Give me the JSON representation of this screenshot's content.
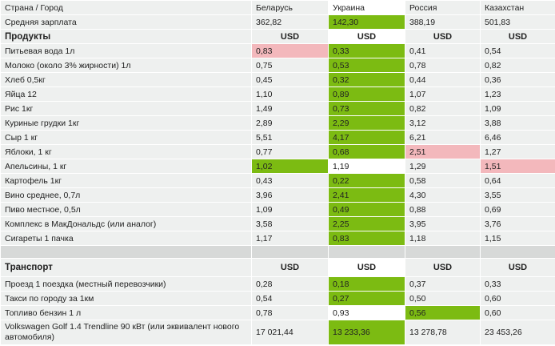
{
  "header": {
    "name": "Страна / Город",
    "countries": [
      "Беларусь",
      "Украина",
      "Россия",
      "Казахстан"
    ]
  },
  "salary": {
    "name": "Средняя зарплата",
    "values": [
      "362,82",
      "142,30",
      "388,19",
      "501,83"
    ]
  },
  "products": {
    "title": "Продукты",
    "currency": [
      "USD",
      "USD",
      "USD",
      "USD"
    ],
    "rows": [
      {
        "name": "Питьевая вода 1л",
        "values": [
          "0,83",
          "0,33",
          "0,41",
          "0,54"
        ],
        "hl": [
          "r",
          "g",
          "",
          ""
        ]
      },
      {
        "name": "Молоко (около 3% жирности) 1л",
        "values": [
          "0,75",
          "0,53",
          "0,78",
          "0,82"
        ],
        "hl": [
          "",
          "g",
          "",
          ""
        ]
      },
      {
        "name": "Хлеб 0,5кг",
        "values": [
          "0,45",
          "0,32",
          "0,44",
          "0,36"
        ],
        "hl": [
          "",
          "g",
          "",
          ""
        ]
      },
      {
        "name": "Яйца 12",
        "values": [
          "1,10",
          "0,89",
          "1,07",
          "1,23"
        ],
        "hl": [
          "",
          "g",
          "",
          ""
        ]
      },
      {
        "name": "Рис 1кг",
        "values": [
          "1,49",
          "0,73",
          "0,82",
          "1,09"
        ],
        "hl": [
          "",
          "g",
          "",
          ""
        ]
      },
      {
        "name": "Куриные грудки 1кг",
        "values": [
          "2,89",
          "2,29",
          "3,12",
          "3,88"
        ],
        "hl": [
          "",
          "g",
          "",
          ""
        ]
      },
      {
        "name": "Сыр 1 кг",
        "values": [
          "5,51",
          "4,17",
          "6,21",
          "6,46"
        ],
        "hl": [
          "",
          "g",
          "",
          ""
        ]
      },
      {
        "name": "Яблоки, 1 кг",
        "values": [
          "0,77",
          "0,68",
          "2,51",
          "1,27"
        ],
        "hl": [
          "",
          "g",
          "r",
          ""
        ]
      },
      {
        "name": "Апельсины, 1 кг",
        "values": [
          "1,02",
          "1,19",
          "1,29",
          "1,51"
        ],
        "hl": [
          "g",
          "w",
          "",
          "r"
        ]
      },
      {
        "name": "Картофель 1кг",
        "values": [
          "0,43",
          "0,22",
          "0,58",
          "0,64"
        ],
        "hl": [
          "",
          "g",
          "",
          ""
        ]
      },
      {
        "name": "Вино среднее, 0,7л",
        "values": [
          "3,96",
          "2,41",
          "4,30",
          "3,55"
        ],
        "hl": [
          "",
          "g",
          "",
          ""
        ]
      },
      {
        "name": "Пиво местное, 0,5л",
        "values": [
          "1,09",
          "0,49",
          "0,88",
          "0,69"
        ],
        "hl": [
          "",
          "g",
          "",
          ""
        ]
      },
      {
        "name": "Комплекс в МакДональдс (или аналог)",
        "values": [
          "3,58",
          "2,25",
          "3,95",
          "3,76"
        ],
        "hl": [
          "",
          "g",
          "",
          ""
        ]
      },
      {
        "name": "Сигареты 1 пачка",
        "values": [
          "1,17",
          "0,83",
          "1,18",
          "1,15"
        ],
        "hl": [
          "",
          "g",
          "",
          ""
        ]
      }
    ]
  },
  "transport": {
    "title": "Транспорт",
    "currency": [
      "USD",
      "USD",
      "USD",
      "USD"
    ],
    "rows": [
      {
        "name": "Проезд 1 поездка (местный перевозчики)",
        "values": [
          "0,28",
          "0,18",
          "0,37",
          "0,33"
        ],
        "hl": [
          "",
          "g",
          "",
          ""
        ]
      },
      {
        "name": "Такси по городу за 1км",
        "values": [
          "0,54",
          "0,27",
          "0,50",
          "0,60"
        ],
        "hl": [
          "",
          "g",
          "",
          ""
        ]
      },
      {
        "name": "Топливо бензин 1 л",
        "values": [
          "0,78",
          "0,93",
          "0,56",
          "0,60"
        ],
        "hl": [
          "",
          "w",
          "g",
          ""
        ]
      },
      {
        "name": "Volkswagen Golf 1.4 Trendline 90 кВт (или эквивалент нового автомобиля)",
        "values": [
          "17 021,44",
          "13 233,36",
          "13 278,78",
          "23 453,26"
        ],
        "hl": [
          "",
          "g",
          "",
          ""
        ]
      }
    ]
  },
  "colors": {
    "best": "#7cbb12",
    "worst": "#f3b8bc",
    "cell": "#eef0ef",
    "spacer": "#d7d9d8"
  }
}
